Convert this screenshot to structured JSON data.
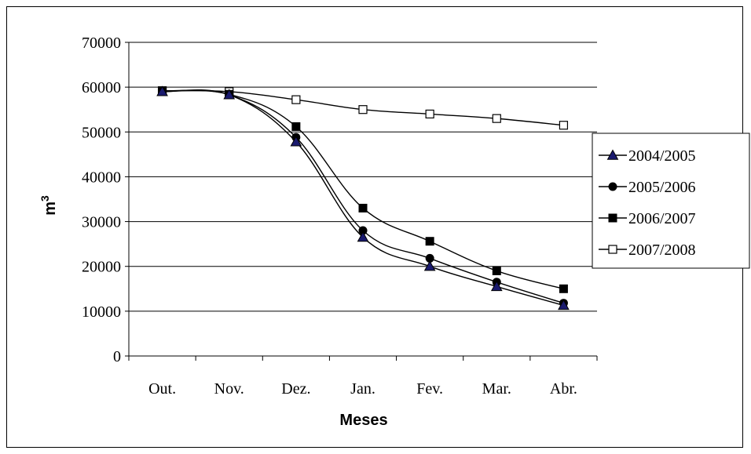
{
  "chart_data": {
    "type": "line",
    "categories": [
      "Out.",
      "Nov.",
      "Dez.",
      "Jan.",
      "Fev.",
      "Mar.",
      "Abr."
    ],
    "ylim": [
      0,
      70000
    ],
    "yticks": [
      0,
      10000,
      20000,
      30000,
      40000,
      50000,
      60000,
      70000
    ],
    "xlabel": "Meses",
    "ylabel": "m",
    "ylabel_superscript": "3",
    "grid": "horizontal",
    "legend_position": "right",
    "series": [
      {
        "name": "2004/2005",
        "marker": "triangle-filled",
        "values": [
          59000,
          58300,
          47800,
          26500,
          20000,
          15500,
          11300
        ]
      },
      {
        "name": "2005/2006",
        "marker": "circle-filled",
        "values": [
          59000,
          58300,
          48800,
          28000,
          21800,
          16500,
          11800
        ]
      },
      {
        "name": "2006/2007",
        "marker": "square-filled",
        "values": [
          59200,
          58400,
          51200,
          33000,
          25600,
          19000,
          15000
        ]
      },
      {
        "name": "2007/2008",
        "marker": "square-open",
        "values": [
          59200,
          59000,
          57200,
          55000,
          54000,
          53000,
          51500
        ]
      }
    ]
  }
}
